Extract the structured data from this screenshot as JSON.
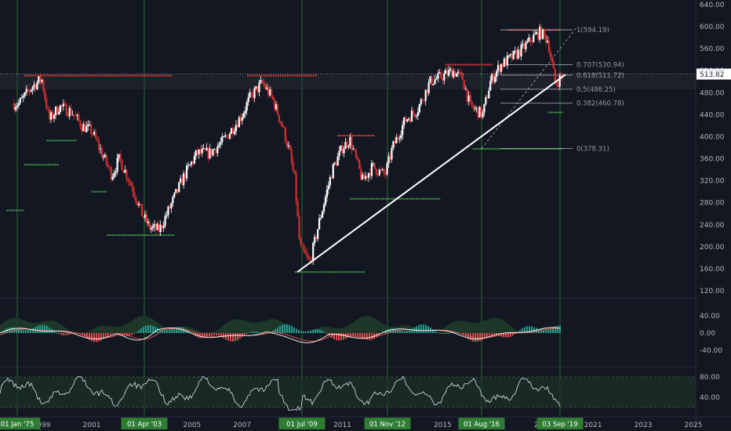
{
  "chart_data": {
    "type": "candlestick",
    "symbol_last_price": "513.82",
    "colors": {
      "background": "#131722",
      "up": "#ffffff",
      "down": "#d32f2f",
      "grid_line": "#2e7d32",
      "resistance": "#e53935",
      "support": "#43a047",
      "trendline": "#ffffff",
      "fib": "#b0b3bb"
    },
    "price_axis": {
      "ticks": [
        "640.00",
        "600.00",
        "560.00",
        "520.00",
        "480.00",
        "440.00",
        "400.00",
        "360.00",
        "320.00",
        "280.00",
        "240.00",
        "200.00",
        "160.00",
        "120.00"
      ],
      "range": [
        120,
        640
      ]
    },
    "time_axis": {
      "ticks": [
        "1999",
        "2001",
        "2003",
        "2005",
        "2007",
        "2009",
        "2011",
        "2013",
        "2015",
        "2017",
        "2019",
        "2021",
        "2023",
        "2025"
      ]
    },
    "highlighted_dates": [
      "01 Jan '75",
      "01 Apr '03",
      "01 Jul '09",
      "01 Nov '12",
      "01 Aug '16",
      "03 Sep '19"
    ],
    "fibonacci": [
      {
        "label": "1(594.19)",
        "value": 594.19
      },
      {
        "label": "0.707(530.94)",
        "value": 530.94
      },
      {
        "label": "0.618(511.72)",
        "value": 511.72
      },
      {
        "label": "0.5(486.25)",
        "value": 486.25
      },
      {
        "label": "0.382(460.78)",
        "value": 460.78
      },
      {
        "label": "0(378.31)",
        "value": 378.31
      }
    ],
    "trendline": {
      "from": {
        "date": "2009.2",
        "price": 154
      },
      "to": {
        "date": "2019.9",
        "price": 513
      }
    },
    "resistance_levels": [
      {
        "from": 1998.3,
        "to": 2004.2,
        "price": 511
      },
      {
        "from": 2007.2,
        "to": 2010.0,
        "price": 511
      },
      {
        "from": 2010.8,
        "to": 2012.3,
        "price": 402
      },
      {
        "from": 2015.1,
        "to": 2017.0,
        "price": 531
      },
      {
        "from": 2017.6,
        "to": 2019.7,
        "price": 594
      }
    ],
    "support_levels": [
      {
        "from": 1997.6,
        "to": 1998.3,
        "price": 266
      },
      {
        "from": 1998.3,
        "to": 1999.7,
        "price": 349
      },
      {
        "from": 1999.2,
        "to": 2000.4,
        "price": 393
      },
      {
        "from": 2001.0,
        "to": 2001.6,
        "price": 300
      },
      {
        "from": 2001.6,
        "to": 2004.3,
        "price": 221
      },
      {
        "from": 2009.1,
        "to": 2011.9,
        "price": 154
      },
      {
        "from": 2011.3,
        "to": 2014.9,
        "price": 287
      },
      {
        "from": 2016.2,
        "to": 2019.8,
        "price": 378
      },
      {
        "from": 2019.2,
        "to": 2019.8,
        "price": 444
      }
    ],
    "series": [
      {
        "name": "close",
        "dates": [
          1998.1,
          1998.6,
          1999.0,
          1999.3,
          1999.7,
          2000.2,
          2000.6,
          2001.0,
          2001.5,
          2001.8,
          2002.1,
          2002.6,
          2003.0,
          2003.3,
          2003.7,
          2004.2,
          2004.7,
          2005.2,
          2005.7,
          2006.2,
          2006.7,
          2007.0,
          2007.3,
          2007.8,
          2008.2,
          2008.6,
          2008.9,
          2009.1,
          2009.3,
          2009.7,
          2010.1,
          2010.6,
          2011.0,
          2011.3,
          2011.8,
          2012.2,
          2012.7,
          2013.0,
          2013.5,
          2014.0,
          2014.5,
          2015.0,
          2015.4,
          2015.8,
          2016.1,
          2016.6,
          2016.9,
          2017.3,
          2017.8,
          2018.2,
          2018.6,
          2018.9,
          2019.2,
          2019.5,
          2019.8
        ],
        "values": [
          460,
          490,
          505,
          430,
          455,
          445,
          420,
          410,
          360,
          330,
          360,
          310,
          260,
          235,
          230,
          280,
          330,
          370,
          370,
          390,
          420,
          440,
          470,
          498,
          470,
          420,
          370,
          320,
          200,
          170,
          250,
          340,
          380,
          395,
          320,
          345,
          330,
          380,
          430,
          450,
          500,
          510,
          520,
          505,
          455,
          440,
          500,
          530,
          545,
          560,
          580,
          590,
          575,
          495,
          513
        ]
      }
    ],
    "macd": {
      "ticks": [
        "40.00",
        "0.00",
        "-40.00"
      ]
    },
    "rsi": {
      "ticks": [
        "80.00",
        "40.00"
      ]
    }
  }
}
